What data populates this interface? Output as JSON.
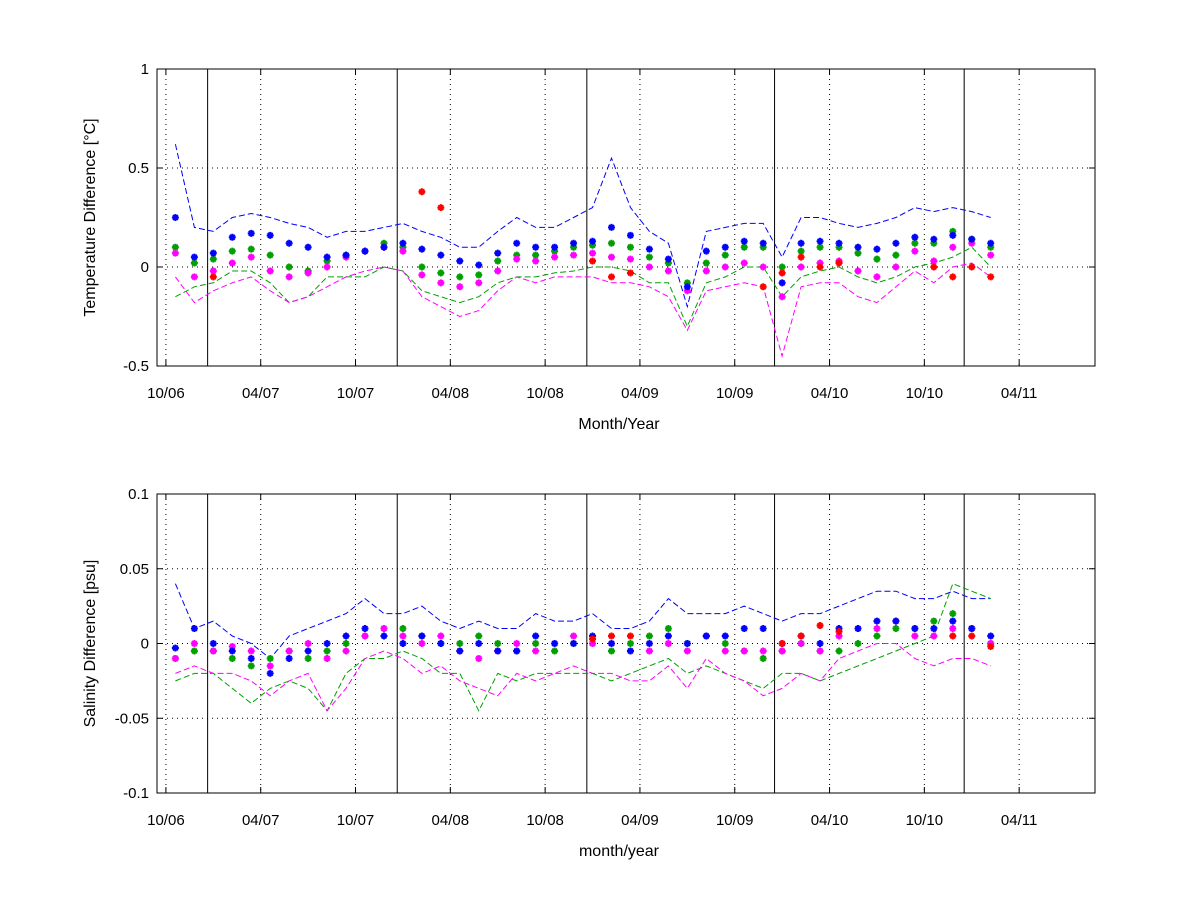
{
  "chart_data": [
    {
      "type": "line",
      "ylabel": "Temperature Difference [°C]",
      "xlabel": "Month/Year",
      "x": [
        2006.8,
        2006.9,
        2007.0,
        2007.1,
        2007.2,
        2007.3,
        2007.4,
        2007.5,
        2007.6,
        2007.7,
        2007.8,
        2007.9,
        2008.0,
        2008.1,
        2008.2,
        2008.3,
        2008.4,
        2008.5,
        2008.6,
        2008.7,
        2008.8,
        2008.9,
        2009.0,
        2009.1,
        2009.2,
        2009.3,
        2009.4,
        2009.5,
        2009.6,
        2009.7,
        2009.8,
        2009.9,
        2010.0,
        2010.1,
        2010.2,
        2010.3,
        2010.4,
        2010.5,
        2010.6,
        2010.7,
        2010.8,
        2010.9,
        2011.0,
        2011.1
      ],
      "xlim": [
        2006.703,
        2011.65
      ],
      "xticks": [
        {
          "value": 2006.75,
          "label": "10/06"
        },
        {
          "value": 2007.25,
          "label": "04/07"
        },
        {
          "value": 2007.75,
          "label": "10/07"
        },
        {
          "value": 2008.25,
          "label": "04/08"
        },
        {
          "value": 2008.75,
          "label": "10/08"
        },
        {
          "value": 2009.25,
          "label": "04/09"
        },
        {
          "value": 2009.75,
          "label": "10/09"
        },
        {
          "value": 2010.25,
          "label": "04/10"
        },
        {
          "value": 2010.75,
          "label": "10/10"
        },
        {
          "value": 2011.25,
          "label": "04/11"
        }
      ],
      "ylim": [
        -0.5,
        1
      ],
      "yticks": [
        -0.5,
        0,
        0.5,
        1
      ],
      "grid": true,
      "vlines": [
        2006.97,
        2007.97,
        2008.97,
        2009.96,
        2010.96
      ],
      "series": [
        {
          "color": "#0000ff",
          "style": "dashed",
          "values": [
            0.62,
            0.2,
            0.18,
            0.25,
            0.27,
            0.25,
            0.22,
            0.2,
            0.15,
            0.18,
            0.18,
            0.2,
            0.22,
            0.18,
            0.15,
            0.1,
            0.1,
            0.18,
            0.25,
            0.2,
            0.2,
            0.25,
            0.3,
            0.55,
            0.3,
            0.18,
            0.12,
            -0.2,
            0.18,
            0.2,
            0.22,
            0.22,
            0.05,
            0.25,
            0.25,
            0.22,
            0.2,
            0.22,
            0.25,
            0.3,
            0.28,
            0.3,
            0.28,
            0.25
          ]
        },
        {
          "color": "#00a000",
          "style": "dashed",
          "values": [
            -0.15,
            -0.1,
            -0.08,
            -0.02,
            -0.02,
            -0.08,
            -0.18,
            -0.15,
            -0.05,
            -0.05,
            -0.05,
            0.0,
            -0.02,
            -0.12,
            -0.15,
            -0.18,
            -0.15,
            -0.08,
            -0.05,
            -0.05,
            -0.03,
            -0.02,
            0.0,
            0.0,
            -0.02,
            -0.08,
            -0.08,
            -0.3,
            -0.08,
            -0.05,
            0.0,
            0.0,
            -0.15,
            -0.05,
            -0.02,
            0.0,
            -0.05,
            -0.08,
            -0.05,
            0.0,
            0.02,
            0.05,
            0.1,
            0.0
          ]
        },
        {
          "color": "#ff00ff",
          "style": "dashed",
          "values": [
            -0.05,
            -0.18,
            -0.12,
            -0.08,
            -0.05,
            -0.12,
            -0.18,
            -0.15,
            -0.1,
            -0.05,
            -0.02,
            0.0,
            -0.02,
            -0.15,
            -0.2,
            -0.25,
            -0.22,
            -0.12,
            -0.05,
            -0.08,
            -0.05,
            -0.05,
            -0.05,
            -0.08,
            -0.08,
            -0.1,
            -0.15,
            -0.32,
            -0.12,
            -0.1,
            -0.08,
            -0.1,
            -0.45,
            -0.1,
            -0.08,
            -0.08,
            -0.15,
            -0.18,
            -0.1,
            -0.02,
            -0.08,
            0.0,
            0.02,
            -0.05
          ]
        },
        {
          "color": "#00a000",
          "style": "marker",
          "values": [
            0.1,
            0.02,
            0.04,
            0.08,
            0.09,
            0.06,
            0.0,
            -0.02,
            0.03,
            0.06,
            0.08,
            0.12,
            0.1,
            0.0,
            -0.03,
            -0.05,
            -0.04,
            0.03,
            0.06,
            0.06,
            0.08,
            0.1,
            0.11,
            0.12,
            0.1,
            0.05,
            0.02,
            -0.08,
            0.02,
            0.06,
            0.1,
            0.1,
            0.0,
            0.08,
            0.1,
            0.1,
            0.07,
            0.04,
            0.06,
            0.12,
            0.12,
            0.18,
            0.14,
            0.1
          ]
        },
        {
          "color": "#ff00ff",
          "style": "marker",
          "values": [
            0.07,
            -0.05,
            -0.02,
            0.02,
            0.05,
            -0.02,
            -0.05,
            -0.03,
            0.0,
            0.05,
            0.08,
            0.1,
            0.08,
            -0.04,
            -0.08,
            -0.1,
            -0.08,
            -0.02,
            0.04,
            0.03,
            0.05,
            0.06,
            0.07,
            0.05,
            0.04,
            0.0,
            -0.02,
            -0.12,
            -0.02,
            0.0,
            0.02,
            0.0,
            -0.15,
            0.0,
            0.02,
            0.03,
            -0.02,
            -0.05,
            0.0,
            0.08,
            0.03,
            0.1,
            0.12,
            0.06
          ]
        },
        {
          "color": "#0000ff",
          "style": "marker",
          "values": [
            0.25,
            0.05,
            0.07,
            0.15,
            0.17,
            0.16,
            0.12,
            0.1,
            0.05,
            0.06,
            0.08,
            0.1,
            0.12,
            0.09,
            0.06,
            0.03,
            0.01,
            0.07,
            0.12,
            0.1,
            0.1,
            0.12,
            0.13,
            0.2,
            0.16,
            0.09,
            0.04,
            -0.1,
            0.08,
            0.1,
            0.13,
            0.12,
            -0.08,
            0.12,
            0.13,
            0.12,
            0.1,
            0.09,
            0.12,
            0.15,
            0.14,
            0.16,
            0.14,
            0.12
          ]
        },
        {
          "color": "#ff0000",
          "style": "marker",
          "values": [
            null,
            null,
            -0.05,
            null,
            null,
            null,
            null,
            null,
            null,
            null,
            null,
            null,
            null,
            0.38,
            0.3,
            null,
            null,
            null,
            null,
            null,
            null,
            null,
            0.03,
            -0.05,
            -0.03,
            null,
            null,
            null,
            null,
            null,
            null,
            -0.1,
            -0.03,
            0.05,
            0.0,
            0.02,
            null,
            null,
            null,
            null,
            0.0,
            -0.05,
            0.0,
            -0.05
          ]
        }
      ]
    },
    {
      "type": "line",
      "ylabel": "Salinity Difference [psu]",
      "xlabel": "month/year",
      "x": [
        2006.8,
        2006.9,
        2007.0,
        2007.1,
        2007.2,
        2007.3,
        2007.4,
        2007.5,
        2007.6,
        2007.7,
        2007.8,
        2007.9,
        2008.0,
        2008.1,
        2008.2,
        2008.3,
        2008.4,
        2008.5,
        2008.6,
        2008.7,
        2008.8,
        2008.9,
        2009.0,
        2009.1,
        2009.2,
        2009.3,
        2009.4,
        2009.5,
        2009.6,
        2009.7,
        2009.8,
        2009.9,
        2010.0,
        2010.1,
        2010.2,
        2010.3,
        2010.4,
        2010.5,
        2010.6,
        2010.7,
        2010.8,
        2010.9,
        2011.0,
        2011.1
      ],
      "xlim": [
        2006.703,
        2011.65
      ],
      "xticks": [
        {
          "value": 2006.75,
          "label": "10/06"
        },
        {
          "value": 2007.25,
          "label": "04/07"
        },
        {
          "value": 2007.75,
          "label": "10/07"
        },
        {
          "value": 2008.25,
          "label": "04/08"
        },
        {
          "value": 2008.75,
          "label": "10/08"
        },
        {
          "value": 2009.25,
          "label": "04/09"
        },
        {
          "value": 2009.75,
          "label": "10/09"
        },
        {
          "value": 2010.25,
          "label": "04/10"
        },
        {
          "value": 2010.75,
          "label": "10/10"
        },
        {
          "value": 2011.25,
          "label": "04/11"
        }
      ],
      "ylim": [
        -0.1,
        0.1
      ],
      "yticks": [
        -0.1,
        -0.05,
        0,
        0.05,
        0.1
      ],
      "grid": true,
      "vlines": [
        2006.97,
        2007.97,
        2008.97,
        2009.96,
        2010.96
      ],
      "series": [
        {
          "color": "#0000ff",
          "style": "dashed",
          "values": [
            0.04,
            0.01,
            0.015,
            0.005,
            0.0,
            -0.01,
            0.005,
            0.01,
            0.015,
            0.02,
            0.03,
            0.02,
            0.02,
            0.025,
            0.015,
            0.01,
            0.015,
            0.01,
            0.01,
            0.02,
            0.015,
            0.015,
            0.02,
            0.01,
            0.01,
            0.015,
            0.03,
            0.02,
            0.02,
            0.02,
            0.025,
            0.02,
            0.015,
            0.02,
            0.02,
            0.025,
            0.03,
            0.035,
            0.035,
            0.03,
            0.03,
            0.035,
            0.03,
            0.03
          ]
        },
        {
          "color": "#00a000",
          "style": "dashed",
          "values": [
            -0.025,
            -0.02,
            -0.02,
            -0.03,
            -0.04,
            -0.03,
            -0.025,
            -0.03,
            -0.045,
            -0.02,
            -0.01,
            -0.01,
            -0.005,
            -0.01,
            -0.02,
            -0.02,
            -0.045,
            -0.02,
            -0.025,
            -0.02,
            -0.02,
            -0.02,
            -0.02,
            -0.025,
            -0.02,
            -0.015,
            -0.01,
            -0.02,
            -0.015,
            -0.02,
            -0.025,
            -0.03,
            -0.02,
            -0.02,
            -0.025,
            -0.02,
            -0.015,
            -0.01,
            -0.005,
            0.0,
            0.005,
            0.04,
            0.035,
            0.03
          ]
        },
        {
          "color": "#ff00ff",
          "style": "dashed",
          "values": [
            -0.02,
            -0.015,
            -0.02,
            -0.02,
            -0.025,
            -0.035,
            -0.025,
            -0.02,
            -0.045,
            -0.03,
            -0.01,
            -0.005,
            -0.01,
            -0.02,
            -0.015,
            -0.025,
            -0.03,
            -0.035,
            -0.02,
            -0.025,
            -0.02,
            -0.015,
            -0.02,
            -0.02,
            -0.025,
            -0.025,
            -0.015,
            -0.03,
            -0.01,
            -0.02,
            -0.025,
            -0.035,
            -0.03,
            -0.02,
            -0.025,
            -0.01,
            -0.005,
            0.0,
            0.0,
            -0.01,
            -0.015,
            -0.01,
            -0.01,
            -0.015
          ]
        },
        {
          "color": "#00a000",
          "style": "marker",
          "values": [
            -0.01,
            -0.005,
            -0.005,
            -0.01,
            -0.015,
            -0.01,
            -0.005,
            -0.01,
            -0.005,
            0.0,
            0.005,
            0.01,
            0.01,
            0.005,
            0.0,
            0.0,
            0.005,
            0.0,
            -0.005,
            0.0,
            -0.005,
            0.0,
            0.0,
            -0.005,
            0.0,
            0.005,
            0.01,
            0.0,
            0.005,
            0.0,
            -0.005,
            -0.01,
            -0.005,
            0.0,
            -0.005,
            -0.005,
            0.0,
            0.005,
            0.01,
            0.01,
            0.015,
            0.02,
            0.01,
            0.0
          ]
        },
        {
          "color": "#ff00ff",
          "style": "marker",
          "values": [
            -0.01,
            0.0,
            -0.005,
            -0.002,
            -0.005,
            -0.015,
            -0.005,
            0.0,
            -0.01,
            -0.005,
            0.005,
            0.01,
            0.005,
            0.0,
            0.005,
            -0.005,
            -0.01,
            -0.005,
            0.0,
            -0.005,
            0.0,
            0.005,
            0.0,
            0.0,
            -0.005,
            -0.005,
            0.0,
            -0.005,
            0.005,
            -0.005,
            -0.005,
            -0.005,
            -0.005,
            0.0,
            -0.005,
            0.005,
            0.01,
            0.01,
            0.015,
            0.005,
            0.005,
            0.01,
            0.01,
            0.0
          ]
        },
        {
          "color": "#0000ff",
          "style": "marker",
          "values": [
            -0.003,
            0.01,
            0.0,
            -0.005,
            -0.01,
            -0.02,
            -0.01,
            -0.005,
            0.0,
            0.005,
            0.01,
            0.005,
            0.0,
            0.005,
            0.0,
            -0.005,
            0.0,
            -0.005,
            -0.005,
            0.005,
            0.0,
            0.0,
            0.005,
            0.0,
            -0.005,
            0.0,
            0.005,
            0.0,
            0.005,
            0.005,
            0.01,
            0.01,
            0.0,
            0.005,
            0.0,
            0.01,
            0.01,
            0.015,
            0.015,
            0.01,
            0.01,
            0.015,
            0.01,
            0.005
          ]
        },
        {
          "color": "#ff0000",
          "style": "marker",
          "values": [
            null,
            null,
            null,
            null,
            null,
            null,
            null,
            null,
            null,
            null,
            null,
            null,
            null,
            null,
            null,
            null,
            null,
            null,
            null,
            null,
            null,
            null,
            0.003,
            0.005,
            0.005,
            null,
            null,
            null,
            null,
            null,
            null,
            null,
            0.0,
            0.005,
            0.012,
            0.008,
            null,
            null,
            null,
            null,
            null,
            0.005,
            0.005,
            -0.002
          ]
        }
      ]
    }
  ]
}
